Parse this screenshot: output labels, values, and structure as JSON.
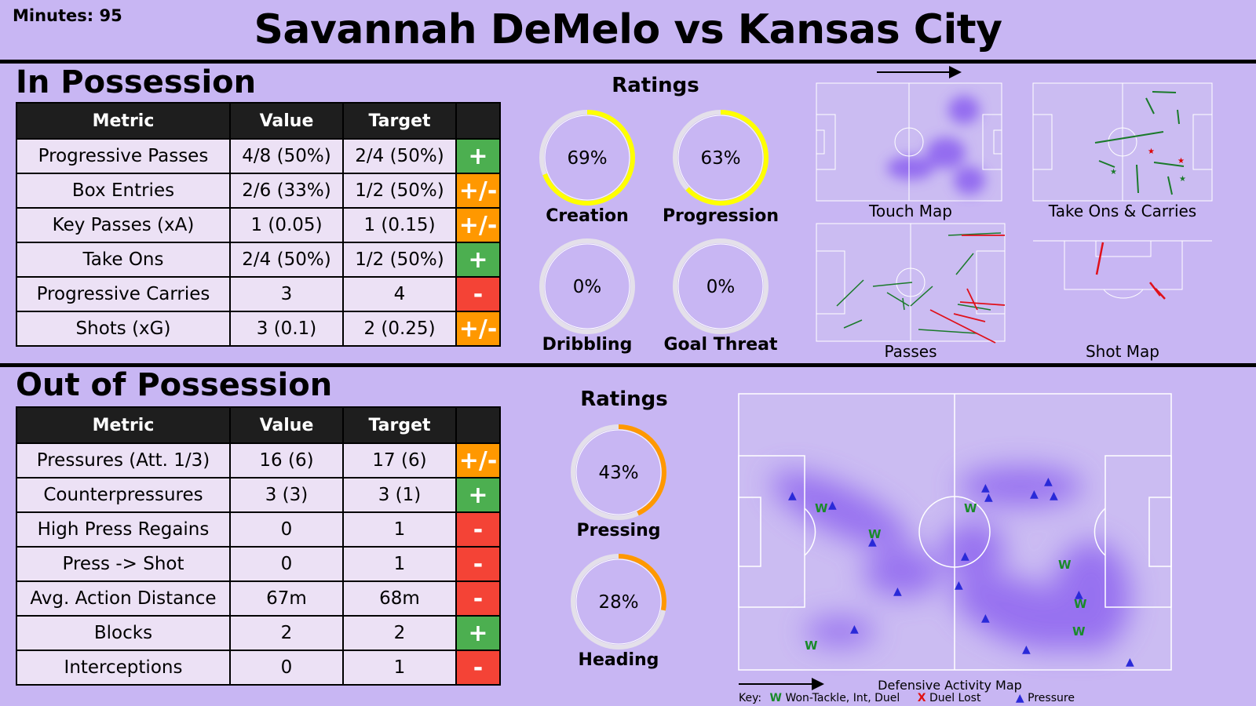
{
  "header": {
    "minutes": "Minutes: 95",
    "title": "Savannah DeMelo vs Kansas City"
  },
  "in_possession": {
    "title": "In Possession",
    "columns": [
      "Metric",
      "Value",
      "Target",
      ""
    ],
    "rows": [
      {
        "metric": "Progressive Passes",
        "value": "4/8 (50%)",
        "target": "2/4 (50%)",
        "flag": "+",
        "flag_color": "#4caf50"
      },
      {
        "metric": "Box Entries",
        "value": "2/6 (33%)",
        "target": "1/2 (50%)",
        "flag": "+/-",
        "flag_color": "#ff9800"
      },
      {
        "metric": "Key Passes (xA)",
        "value": "1 (0.05)",
        "target": "1 (0.15)",
        "flag": "+/-",
        "flag_color": "#ff9800"
      },
      {
        "metric": "Take Ons",
        "value": "2/4 (50%)",
        "target": "1/2 (50%)",
        "flag": "+",
        "flag_color": "#4caf50"
      },
      {
        "metric": "Progressive Carries",
        "value": "3",
        "target": "4",
        "flag": "-",
        "flag_color": "#f44336"
      },
      {
        "metric": "Shots (xG)",
        "value": "3 (0.1)",
        "target": "2 (0.25)",
        "flag": "+/-",
        "flag_color": "#ff9800"
      }
    ],
    "ratings_title": "Ratings",
    "ratings": [
      {
        "label": "Creation",
        "value": 69,
        "text": "69%",
        "color": "#ffff00"
      },
      {
        "label": "Progression",
        "value": 63,
        "text": "63%",
        "color": "#ffff00"
      },
      {
        "label": "Dribbling",
        "value": 0,
        "text": "0%",
        "color": "#ffff00"
      },
      {
        "label": "Goal Threat",
        "value": 0,
        "text": "0%",
        "color": "#ffff00"
      }
    ],
    "maps": {
      "touch_map": "Touch Map",
      "take_ons": "Take Ons & Carries",
      "passes": "Passes",
      "shot_map": "Shot Map"
    }
  },
  "out_of_possession": {
    "title": "Out of Possession",
    "columns": [
      "Metric",
      "Value",
      "Target",
      ""
    ],
    "rows": [
      {
        "metric": "Pressures (Att. 1/3)",
        "value": "16 (6)",
        "target": "17 (6)",
        "flag": "+/-",
        "flag_color": "#ff9800"
      },
      {
        "metric": "Counterpressures",
        "value": "3 (3)",
        "target": "3 (1)",
        "flag": "+",
        "flag_color": "#4caf50"
      },
      {
        "metric": "High Press Regains",
        "value": "0",
        "target": "1",
        "flag": "-",
        "flag_color": "#f44336"
      },
      {
        "metric": "Press -> Shot",
        "value": "0",
        "target": "1",
        "flag": "-",
        "flag_color": "#f44336"
      },
      {
        "metric": "Avg. Action Distance",
        "value": "67m",
        "target": "68m",
        "flag": "-",
        "flag_color": "#f44336"
      },
      {
        "metric": "Blocks",
        "value": "2",
        "target": "2",
        "flag": "+",
        "flag_color": "#4caf50"
      },
      {
        "metric": "Interceptions",
        "value": "0",
        "target": "1",
        "flag": "-",
        "flag_color": "#f44336"
      }
    ],
    "ratings_title": "Ratings",
    "ratings": [
      {
        "label": "Pressing",
        "value": 43,
        "text": "43%",
        "color": "#ff9800"
      },
      {
        "label": "Heading",
        "value": 28,
        "text": "28%",
        "color": "#ff9800"
      }
    ],
    "map_title": "Defensive Activity Map",
    "key": {
      "prefix": "Key:",
      "won": "Won-Tackle, Int, Duel",
      "won_symbol": "W",
      "lost": "Duel Lost",
      "lost_symbol": "X",
      "pressure": "Pressure",
      "pressure_symbol": "▲"
    }
  },
  "chart_data": {
    "type": "table",
    "tables": [
      {
        "name": "In Possession",
        "columns": [
          "Metric",
          "Value",
          "Target"
        ],
        "rows": [
          [
            "Progressive Passes",
            "4/8 (50%)",
            "2/4 (50%)"
          ],
          [
            "Box Entries",
            "2/6 (33%)",
            "1/2 (50%)"
          ],
          [
            "Key Passes (xA)",
            "1 (0.05)",
            "1 (0.15)"
          ],
          [
            "Take Ons",
            "2/4 (50%)",
            "1/2 (50%)"
          ],
          [
            "Progressive Carries",
            "3",
            "4"
          ],
          [
            "Shots (xG)",
            "3 (0.1)",
            "2 (0.25)"
          ]
        ]
      },
      {
        "name": "Out of Possession",
        "columns": [
          "Metric",
          "Value",
          "Target"
        ],
        "rows": [
          [
            "Pressures (Att. 1/3)",
            "16 (6)",
            "17 (6)"
          ],
          [
            "Counterpressures",
            "3 (3)",
            "3 (1)"
          ],
          [
            "High Press Regains",
            "0",
            "1"
          ],
          [
            "Press -> Shot",
            "0",
            "1"
          ],
          [
            "Avg. Action Distance",
            "67m",
            "68m"
          ],
          [
            "Blocks",
            "2",
            "2"
          ],
          [
            "Interceptions",
            "0",
            "1"
          ]
        ]
      }
    ]
  }
}
